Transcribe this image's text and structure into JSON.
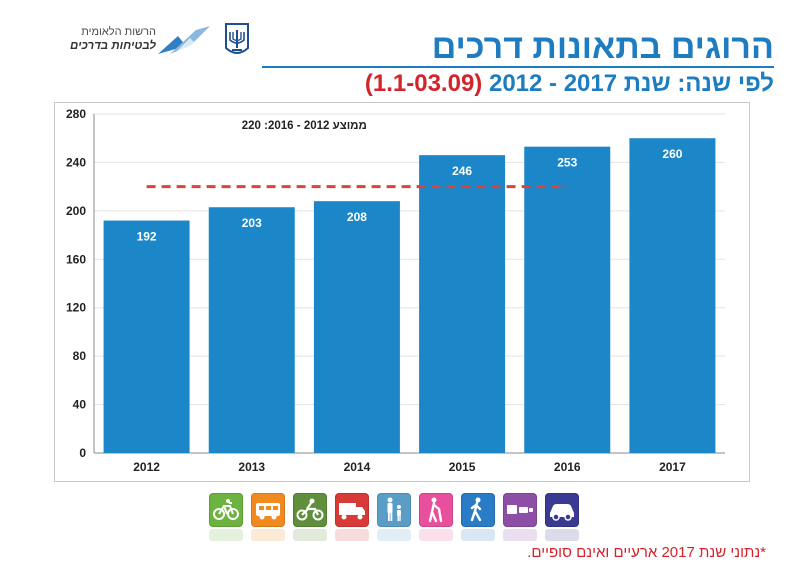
{
  "header": {
    "org_name_line1": "הרשות הלאומית",
    "org_name_line2": "לבטיחות בדרכים",
    "title": "הרוגים בתאונות דרכים",
    "subtitle_main": "לפי שנה: שנת 2017 - 2012",
    "subtitle_period": "(1.1-03.09)"
  },
  "chart_data": {
    "type": "bar",
    "categories": [
      "2012",
      "2013",
      "2014",
      "2015",
      "2016",
      "2017"
    ],
    "values": [
      192,
      203,
      208,
      246,
      253,
      260
    ],
    "ylim": [
      0,
      280
    ],
    "yticks": [
      0,
      40,
      80,
      120,
      160,
      200,
      240,
      280
    ],
    "average": {
      "label": "ממוצע 2012 - 2016: 220",
      "value": 220,
      "spans": [
        "2012",
        "2016"
      ]
    },
    "bar_color": "#1b87c9",
    "average_line_color": "#d9443d",
    "grid": true
  },
  "transport_modes": [
    {
      "name": "bicycle",
      "color": "#6cb33f"
    },
    {
      "name": "bus",
      "color": "#f08a21"
    },
    {
      "name": "motorcycle",
      "color": "#5f8f3a"
    },
    {
      "name": "truck",
      "color": "#d83a37"
    },
    {
      "name": "parent-child",
      "color": "#5a9ec8"
    },
    {
      "name": "elderly-pedestrian",
      "color": "#e84f9c"
    },
    {
      "name": "pedestrian",
      "color": "#2a7cc7"
    },
    {
      "name": "scooter",
      "color": "#8d4fa5"
    },
    {
      "name": "car",
      "color": "#3b3a93"
    }
  ],
  "footnote": "*נתוני שנת 2017 ארעיים ואינם סופיים."
}
